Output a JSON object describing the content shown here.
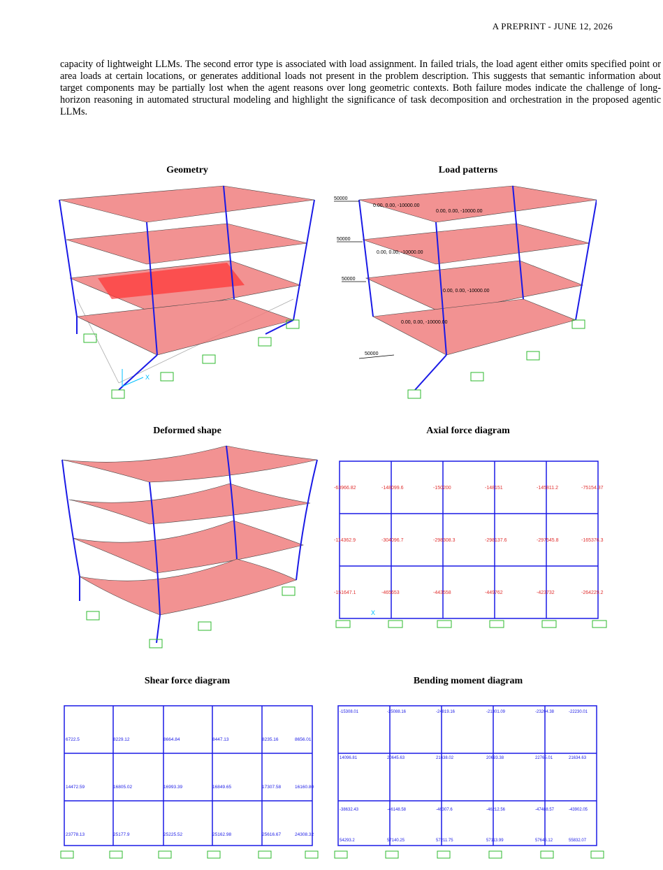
{
  "header": {
    "text": "A PREPRINT - JUNE 12, 2026"
  },
  "paragraph": {
    "text": "capacity of lightweight LLMs. The second error type is associated with load assignment. In failed trials, the load agent either omits specified point or area loads at certain locations, or generates additional loads not present in the problem description. This suggests that semantic information about target components may be partially lost when the agent reasons over long geometric contexts. Both failure modes indicate the challenge of long-horizon reasoning in automated structural modeling and highlight the significance of task decomposition and orchestration in the proposed agentic LLMs."
  },
  "panels": {
    "geometry": "Geometry",
    "load_patterns": "Load patterns",
    "deformed": "Deformed shape",
    "axial": "Axial force diagram",
    "shear": "Shear force diagram",
    "bending": "Bending moment diagram"
  },
  "axis_labels": {
    "x": "X"
  },
  "load_labels": {
    "point": "50000",
    "area": "0.00, 0.00, -10000.00"
  },
  "axial_values": [
    "-63966.82",
    "-148099.6",
    "-150200",
    "-148151",
    "-145811.2",
    "-75154.37",
    "-114362.9",
    "-304096.7",
    "-298308.3",
    "-298137.6",
    "-297545.8",
    "-165376.3",
    "-151647.1",
    "-465653",
    "-443558",
    "-449762",
    "-423732",
    "-264229.2"
  ],
  "shear_values": [
    "6722.5",
    "8229.12",
    "8664.84",
    "8447.13",
    "8235.16",
    "8656.01",
    "14472.59",
    "16805.02",
    "16993.39",
    "16849.65",
    "17307.58",
    "16160.80",
    "23778.13",
    "25177.9",
    "25225.52",
    "25162.98",
    "25616.67",
    "24308.32"
  ],
  "bending_values": [
    "-15308.01",
    "-25088.16",
    "-24819.16",
    "-21301.09",
    "-23204.38",
    "-22230.01",
    "14096.81",
    "20645.63",
    "21638.02",
    "20693.38",
    "22765.01",
    "21634.63",
    "-38632.43",
    "-46148.58",
    "-46307.6",
    "-46212.56",
    "-47488.57",
    "-43902.05",
    "54293.2",
    "57140.25",
    "57211.75",
    "57113.99",
    "57645.12",
    "55832.07"
  ]
}
